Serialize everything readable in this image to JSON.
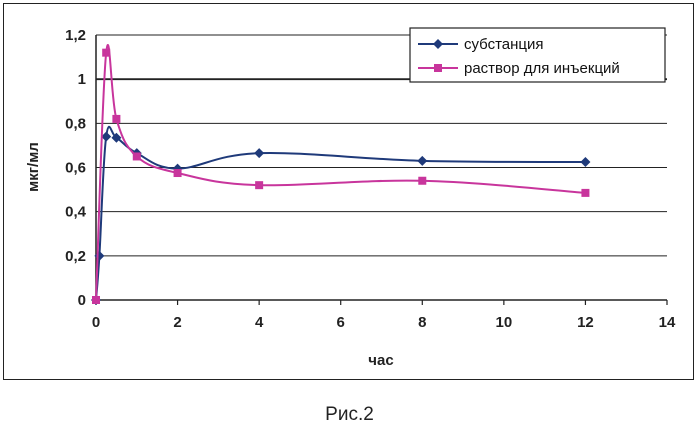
{
  "chart_data": {
    "type": "line",
    "title": "",
    "xlabel": "час",
    "ylabel": "мкг/мл",
    "xlim": [
      0,
      14
    ],
    "ylim": [
      0,
      1.2
    ],
    "x_ticks": [
      "0",
      "2",
      "4",
      "6",
      "8",
      "10",
      "12",
      "14"
    ],
    "y_ticks": [
      "0",
      "0,2",
      "0,4",
      "0,6",
      "0,8",
      "1",
      "1,2"
    ],
    "grid": "horizontal",
    "legend_position": "top-right",
    "series": [
      {
        "name": "субстанция",
        "color": "#1f3a7a",
        "marker": "diamond",
        "points": [
          [
            0,
            0
          ],
          [
            0.083,
            0.2
          ],
          [
            0.25,
            0.74
          ],
          [
            0.5,
            0.735
          ],
          [
            1,
            0.665
          ],
          [
            2,
            0.595
          ],
          [
            4,
            0.665
          ],
          [
            8,
            0.63
          ],
          [
            12,
            0.625
          ]
        ]
      },
      {
        "name": "раствор для инъекций",
        "color": "#c8359c",
        "marker": "square",
        "points": [
          [
            0,
            0
          ],
          [
            0.25,
            1.12
          ],
          [
            0.5,
            0.82
          ],
          [
            1,
            0.65
          ],
          [
            2,
            0.575
          ],
          [
            4,
            0.52
          ],
          [
            8,
            0.54
          ],
          [
            12,
            0.485
          ]
        ]
      }
    ]
  },
  "caption": "Рис.2"
}
